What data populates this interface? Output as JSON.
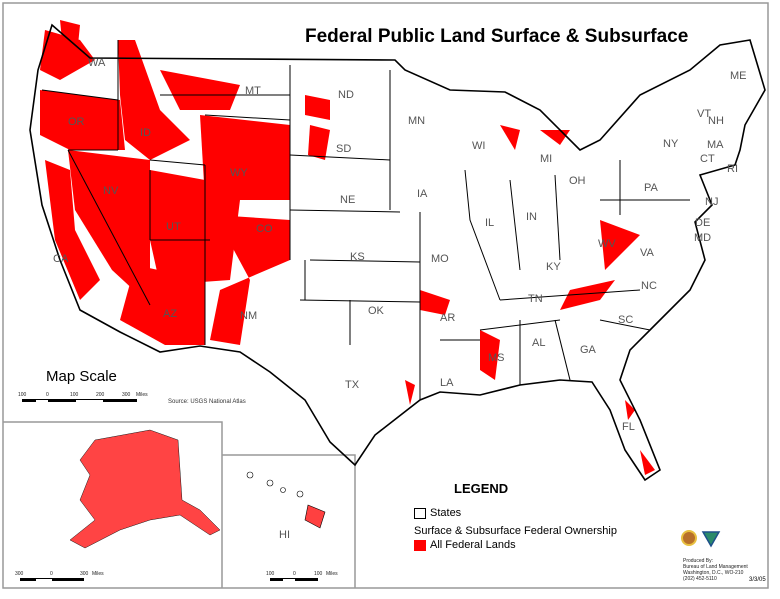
{
  "title": "Federal Public Land Surface & Subsurface",
  "colors": {
    "federal_land": "#ff0000",
    "state_border": "#000000",
    "label": "#555555",
    "frame": "#999999"
  },
  "states": [
    "WA",
    "OR",
    "ID",
    "MT",
    "ND",
    "MN",
    "WI",
    "MI",
    "NY",
    "ME",
    "VT",
    "NH",
    "MA",
    "CT",
    "RI",
    "PA",
    "NJ",
    "DE",
    "MD",
    "OH",
    "IN",
    "IL",
    "IA",
    "NE",
    "SD",
    "WY",
    "NV",
    "UT",
    "CO",
    "CA",
    "AZ",
    "NM",
    "KS",
    "MO",
    "OK",
    "AR",
    "TX",
    "LA",
    "MS",
    "AL",
    "GA",
    "TN",
    "KY",
    "WV",
    "VA",
    "NC",
    "SC",
    "FL",
    "HI"
  ],
  "map_scale": {
    "title": "Map Scale",
    "ticks": [
      "100",
      "0",
      "100",
      "200",
      "300"
    ],
    "unit": "Miles",
    "source": "Source: USGS National Atlas"
  },
  "alaska_scale": {
    "ticks": [
      "300",
      "0",
      "300"
    ],
    "unit": "Miles"
  },
  "hawaii_scale": {
    "ticks": [
      "100",
      "0",
      "100"
    ],
    "unit": "Miles"
  },
  "legend": {
    "title": "LEGEND",
    "states_label": "States",
    "subtitle": "Surface & Subsurface Federal Ownership",
    "federal_label": "All Federal Lands"
  },
  "credits": [
    "Produced By:",
    "Bureau of Land Management",
    "Washington, D.C., WO-210",
    "(202) 452-5110"
  ],
  "date": "3/3/05",
  "logos": [
    "department-of-interior-seal",
    "blm-logo"
  ]
}
